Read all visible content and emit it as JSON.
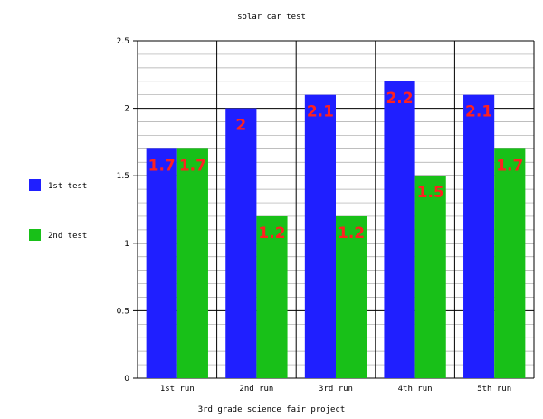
{
  "chart_data": {
    "type": "bar",
    "title": "solar car test",
    "xlabel": "3rd grade science fair project",
    "ylabel": "",
    "categories": [
      "1st run",
      "2nd run",
      "3rd run",
      "4th run",
      "5th run"
    ],
    "series": [
      {
        "name": "1st test",
        "color": "#1f1fff",
        "values": [
          1.7,
          2,
          2.1,
          2.2,
          2.1
        ]
      },
      {
        "name": "2nd test",
        "color": "#18c018",
        "values": [
          1.7,
          1.2,
          1.2,
          1.5,
          1.7
        ]
      }
    ],
    "ylim": [
      0,
      2.5
    ],
    "yticks": [
      "0",
      "0.5",
      "1",
      "1.5",
      "2",
      "2.5"
    ],
    "data_labels": [
      [
        "1.7",
        "2",
        "2.1",
        "2.2",
        "2.1"
      ],
      [
        "1.7",
        "1.2",
        "1.2",
        "1.5",
        "1.7"
      ]
    ],
    "grid": true,
    "legend_position": "left"
  }
}
